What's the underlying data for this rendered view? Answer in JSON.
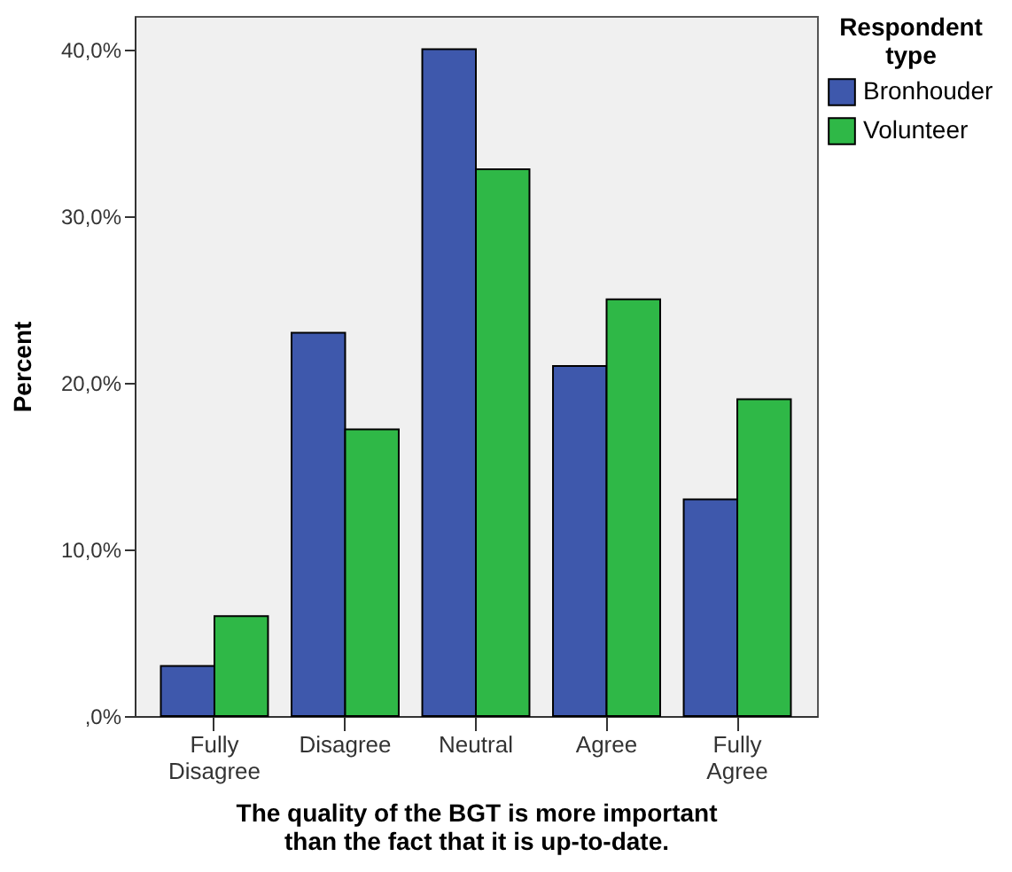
{
  "chart_data": {
    "type": "bar",
    "xlabel": "The quality of the BGT is more important than the fact that it is up-to-date.",
    "ylabel": "Percent",
    "legend_title": "Respondent type",
    "legend": "right",
    "grid": false,
    "categories": [
      "Fully Disagree",
      "Disagree",
      "Neutral",
      "Agree",
      "Fully Agree"
    ],
    "series": [
      {
        "name": "Bronhouder",
        "color": "#3e58ac",
        "values": [
          3.0,
          23.0,
          40.0,
          21.0,
          13.0
        ]
      },
      {
        "name": "Volunteer",
        "color": "#2fb847",
        "values": [
          6.0,
          17.2,
          32.8,
          25.0,
          19.0
        ]
      }
    ],
    "ylim": [
      0,
      42
    ],
    "yticks": [
      {
        "value": 0,
        "label": ",0%"
      },
      {
        "value": 10,
        "label": "10,0%"
      },
      {
        "value": 20,
        "label": "20,0%"
      },
      {
        "value": 30,
        "label": "30,0%"
      },
      {
        "value": 40,
        "label": "40,0%"
      }
    ]
  }
}
